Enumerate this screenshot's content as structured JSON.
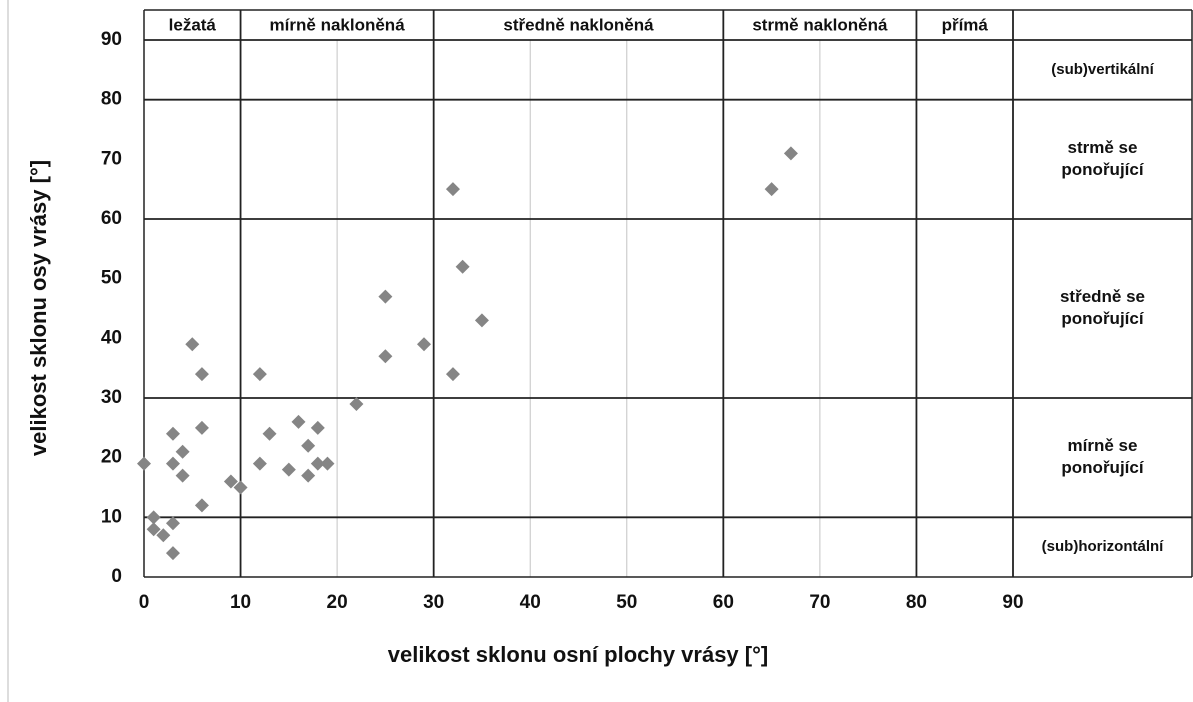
{
  "chart_data": {
    "type": "scatter",
    "x_label": "velikost sklonu osní plochy vrásy [°]",
    "y_label": "velikost sklonu osy vrásy [°]",
    "color": "#858585",
    "x": [
      0,
      1,
      1,
      2,
      3,
      3,
      3,
      3,
      4,
      4,
      5,
      6,
      6,
      6,
      9,
      10,
      12,
      12,
      13,
      15,
      16,
      17,
      17,
      18,
      18,
      19,
      22,
      25,
      25,
      29,
      32,
      32,
      33,
      35,
      65,
      67
    ],
    "values": [
      19,
      10,
      8,
      7,
      9,
      4,
      19,
      24,
      21,
      17,
      39,
      34,
      25,
      12,
      16,
      15,
      34,
      19,
      24,
      18,
      26,
      22,
      17,
      25,
      19,
      19,
      29,
      47,
      37,
      39,
      65,
      34,
      52,
      43,
      65,
      71
    ],
    "xlim": [
      0,
      90
    ],
    "ylim": [
      0,
      90
    ],
    "xticks": [
      0,
      10,
      20,
      30,
      40,
      50,
      60,
      70,
      80,
      90
    ],
    "yticks": [
      0,
      10,
      20,
      30,
      40,
      50,
      60,
      70,
      80,
      90
    ],
    "grid": true,
    "x_zones": [
      {
        "label": "ležatá",
        "from": 0,
        "to": 10
      },
      {
        "label": "mírně nakloněná",
        "from": 10,
        "to": 30
      },
      {
        "label": "středně nakloněná",
        "from": 30,
        "to": 60
      },
      {
        "label": "strmě nakloněná",
        "from": 60,
        "to": 80
      },
      {
        "label": "přímá",
        "from": 80,
        "to": 90
      }
    ],
    "y_zones": [
      {
        "label": [
          "(sub)horizontální"
        ],
        "from": 0,
        "to": 10
      },
      {
        "label": [
          "mírně se",
          "ponořující"
        ],
        "from": 10,
        "to": 30
      },
      {
        "label": [
          "středně se",
          "ponořující"
        ],
        "from": 30,
        "to": 60
      },
      {
        "label": [
          "strmě se",
          "ponořující"
        ],
        "from": 60,
        "to": 80
      },
      {
        "label": [
          "(sub)vertikální"
        ],
        "from": 80,
        "to": 90
      }
    ]
  }
}
